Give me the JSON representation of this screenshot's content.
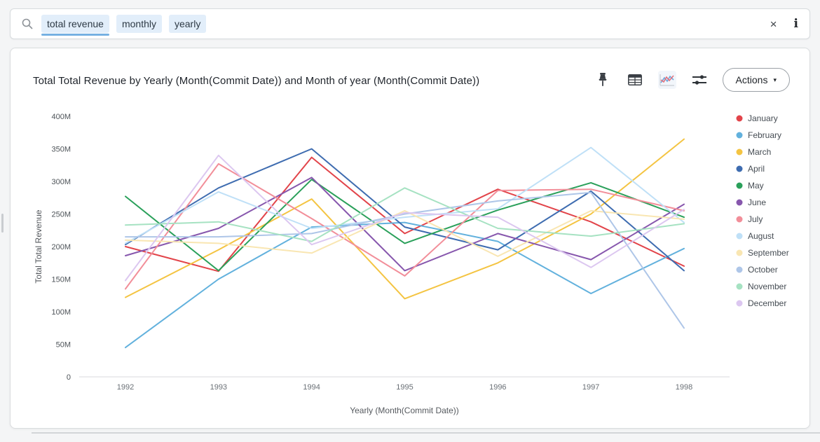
{
  "search_bar": {
    "tokens": [
      {
        "label": "total revenue",
        "active": true
      },
      {
        "label": "monthly",
        "active": false
      },
      {
        "label": "yearly",
        "active": false
      }
    ],
    "clear_label": "×"
  },
  "toolbar": {
    "actions_label": "Actions",
    "caret": "▾",
    "icons": [
      "pin",
      "table",
      "line-chart",
      "configure"
    ]
  },
  "chart_data": {
    "type": "line",
    "title": "Total Total Revenue by Yearly (Month(Commit Date)) and Month of year (Month(Commit Date))",
    "xlabel": "Yearly (Month(Commit Date))",
    "ylabel": "Total Total Revenue",
    "x": [
      "1992",
      "1993",
      "1994",
      "1995",
      "1996",
      "1997",
      "1998"
    ],
    "ylim_millions": [
      0,
      400
    ],
    "yticks": [
      {
        "v": 0,
        "label": "0"
      },
      {
        "v": 50,
        "label": "50M"
      },
      {
        "v": 100,
        "label": "100M"
      },
      {
        "v": 150,
        "label": "150M"
      },
      {
        "v": 200,
        "label": "200M"
      },
      {
        "v": 250,
        "label": "250M"
      },
      {
        "v": 300,
        "label": "300M"
      },
      {
        "v": 350,
        "label": "350M"
      },
      {
        "v": 400,
        "label": "400M"
      }
    ],
    "grid": false,
    "legend_position": "right",
    "series": [
      {
        "name": "January",
        "color": "#e2444a",
        "values": [
          200,
          162,
          337,
          220,
          288,
          238,
          170
        ]
      },
      {
        "name": "February",
        "color": "#62b1dd",
        "values": [
          45,
          150,
          230,
          237,
          208,
          128,
          197
        ]
      },
      {
        "name": "March",
        "color": "#f4c442",
        "values": [
          122,
          195,
          273,
          120,
          175,
          250,
          365
        ]
      },
      {
        "name": "April",
        "color": "#3e6cb0",
        "values": [
          203,
          290,
          350,
          230,
          195,
          285,
          163
        ]
      },
      {
        "name": "May",
        "color": "#2aa05a",
        "values": [
          277,
          163,
          303,
          205,
          256,
          298,
          245
        ]
      },
      {
        "name": "June",
        "color": "#8757ad",
        "values": [
          186,
          228,
          306,
          163,
          220,
          180,
          265
        ]
      },
      {
        "name": "July",
        "color": "#f28e99",
        "values": [
          135,
          327,
          243,
          155,
          286,
          288,
          255
        ]
      },
      {
        "name": "August",
        "color": "#bfe0f7",
        "values": [
          205,
          284,
          228,
          245,
          258,
          352,
          237
        ]
      },
      {
        "name": "September",
        "color": "#f9e6b2",
        "values": [
          210,
          205,
          190,
          255,
          185,
          255,
          242
        ]
      },
      {
        "name": "October",
        "color": "#aec6e8",
        "values": [
          215,
          215,
          220,
          250,
          270,
          283,
          75
        ]
      },
      {
        "name": "November",
        "color": "#a6e2c2",
        "values": [
          233,
          238,
          208,
          290,
          228,
          216,
          235
        ]
      },
      {
        "name": "December",
        "color": "#dcc7f0",
        "values": [
          148,
          340,
          203,
          252,
          245,
          168,
          257
        ]
      }
    ]
  }
}
